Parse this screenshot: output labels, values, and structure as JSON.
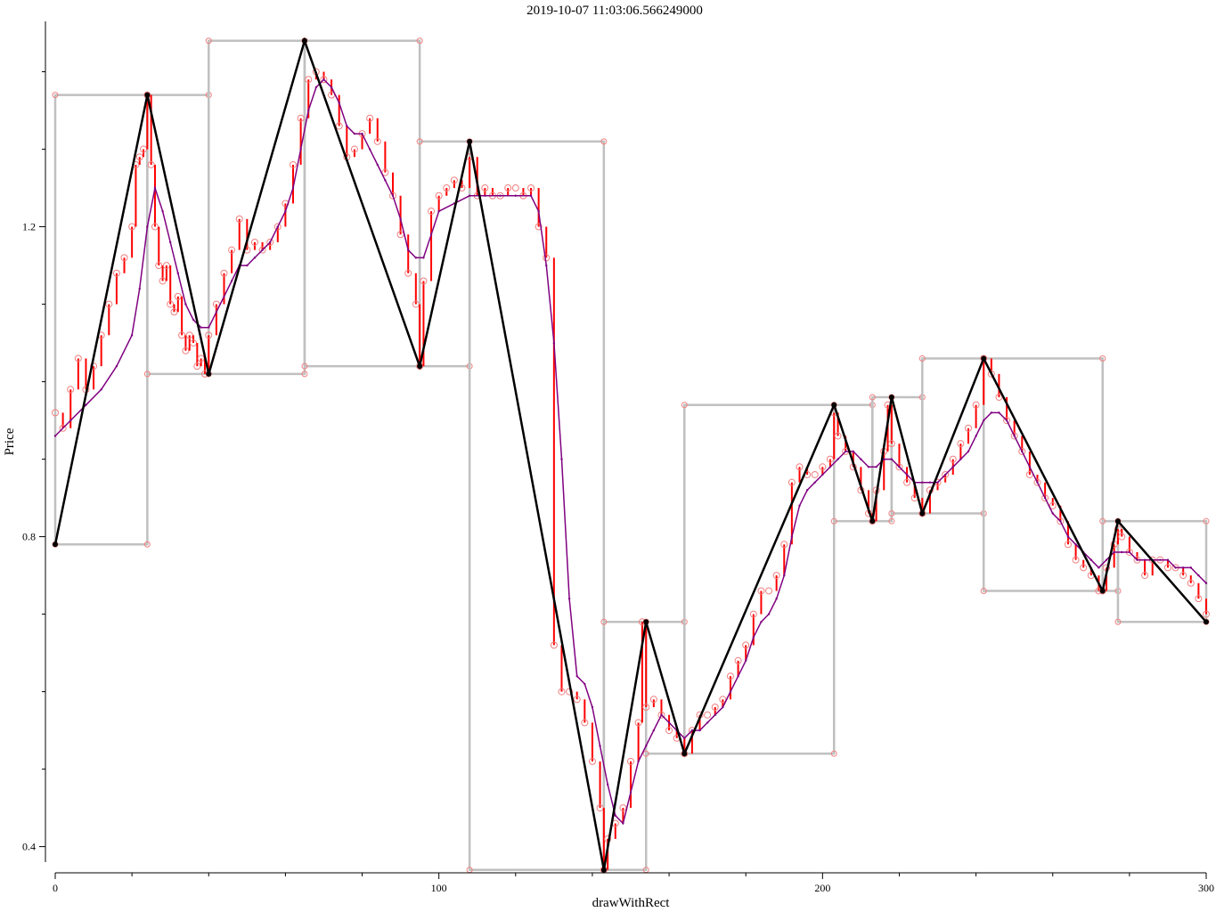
{
  "chart_data": {
    "type": "line",
    "title": "2019-10-07 11:03:06.566249000",
    "xlabel": "drawWithRect",
    "ylabel": "Price",
    "xlim": [
      0,
      300
    ],
    "ylim": [
      0.38,
      1.465
    ],
    "x_ticks": [
      0,
      100,
      200,
      300
    ],
    "y_ticks": [
      0.4,
      0.8,
      1.2
    ],
    "grid": false,
    "price_series": {
      "name": "",
      "color": "#ff0000",
      "points": [
        [
          0,
          0.96
        ],
        [
          2,
          0.94
        ],
        [
          4,
          0.99
        ],
        [
          6,
          1.03
        ],
        [
          8,
          0.99
        ],
        [
          10,
          1.02
        ],
        [
          12,
          1.06
        ],
        [
          14,
          1.1
        ],
        [
          16,
          1.14
        ],
        [
          18,
          1.16
        ],
        [
          20,
          1.2
        ],
        [
          21,
          1.28
        ],
        [
          22,
          1.29
        ],
        [
          23,
          1.3
        ],
        [
          24,
          1.37
        ],
        [
          25,
          1.28
        ],
        [
          26,
          1.2
        ],
        [
          27,
          1.15
        ],
        [
          28,
          1.13
        ],
        [
          29,
          1.15
        ],
        [
          30,
          1.1
        ],
        [
          31,
          1.09
        ],
        [
          32,
          1.11
        ],
        [
          33,
          1.06
        ],
        [
          34,
          1.04
        ],
        [
          35,
          1.06
        ],
        [
          36,
          1.05
        ],
        [
          37,
          1.02
        ],
        [
          38,
          1.03
        ],
        [
          39,
          1.01
        ],
        [
          40,
          1.06
        ],
        [
          42,
          1.1
        ],
        [
          44,
          1.14
        ],
        [
          46,
          1.17
        ],
        [
          48,
          1.21
        ],
        [
          50,
          1.17
        ],
        [
          52,
          1.18
        ],
        [
          54,
          1.17
        ],
        [
          56,
          1.18
        ],
        [
          58,
          1.2
        ],
        [
          60,
          1.23
        ],
        [
          62,
          1.28
        ],
        [
          64,
          1.34
        ],
        [
          66,
          1.39
        ],
        [
          68,
          1.4
        ],
        [
          70,
          1.39
        ],
        [
          72,
          1.37
        ],
        [
          74,
          1.33
        ],
        [
          76,
          1.29
        ],
        [
          78,
          1.3
        ],
        [
          80,
          1.32
        ],
        [
          82,
          1.34
        ],
        [
          84,
          1.31
        ],
        [
          86,
          1.27
        ],
        [
          88,
          1.24
        ],
        [
          90,
          1.19
        ],
        [
          92,
          1.14
        ],
        [
          94,
          1.1
        ],
        [
          95,
          1.02
        ],
        [
          96,
          1.13
        ],
        [
          98,
          1.22
        ],
        [
          100,
          1.24
        ],
        [
          102,
          1.25
        ],
        [
          104,
          1.26
        ],
        [
          106,
          1.25
        ],
        [
          108,
          1.29
        ],
        [
          110,
          1.24
        ],
        [
          112,
          1.25
        ],
        [
          114,
          1.24
        ],
        [
          116,
          1.24
        ],
        [
          118,
          1.25
        ],
        [
          120,
          1.25
        ],
        [
          122,
          1.24
        ],
        [
          124,
          1.25
        ],
        [
          126,
          1.2
        ],
        [
          128,
          1.16
        ],
        [
          130,
          0.66
        ],
        [
          132,
          0.6
        ],
        [
          134,
          0.6
        ],
        [
          136,
          0.59
        ],
        [
          138,
          0.56
        ],
        [
          140,
          0.51
        ],
        [
          142,
          0.45
        ],
        [
          143,
          0.37
        ],
        [
          144,
          0.41
        ],
        [
          146,
          0.43
        ],
        [
          148,
          0.45
        ],
        [
          150,
          0.51
        ],
        [
          152,
          0.56
        ],
        [
          153,
          0.69
        ],
        [
          154,
          0.58
        ],
        [
          156,
          0.59
        ],
        [
          158,
          0.57
        ],
        [
          160,
          0.55
        ],
        [
          162,
          0.54
        ],
        [
          164,
          0.52
        ],
        [
          166,
          0.55
        ],
        [
          168,
          0.57
        ],
        [
          170,
          0.57
        ],
        [
          172,
          0.58
        ],
        [
          174,
          0.59
        ],
        [
          176,
          0.62
        ],
        [
          178,
          0.64
        ],
        [
          180,
          0.66
        ],
        [
          182,
          0.7
        ],
        [
          184,
          0.73
        ],
        [
          186,
          0.73
        ],
        [
          188,
          0.75
        ],
        [
          190,
          0.79
        ],
        [
          192,
          0.87
        ],
        [
          194,
          0.89
        ],
        [
          196,
          0.88
        ],
        [
          198,
          0.88
        ],
        [
          200,
          0.89
        ],
        [
          202,
          0.9
        ],
        [
          203,
          0.96
        ],
        [
          204,
          0.93
        ],
        [
          206,
          0.91
        ],
        [
          208,
          0.89
        ],
        [
          210,
          0.86
        ],
        [
          212,
          0.83
        ],
        [
          213,
          0.82
        ],
        [
          214,
          0.86
        ],
        [
          216,
          0.91
        ],
        [
          217,
          0.97
        ],
        [
          218,
          0.92
        ],
        [
          220,
          0.89
        ],
        [
          222,
          0.87
        ],
        [
          224,
          0.85
        ],
        [
          226,
          0.83
        ],
        [
          228,
          0.86
        ],
        [
          230,
          0.87
        ],
        [
          232,
          0.88
        ],
        [
          234,
          0.9
        ],
        [
          236,
          0.92
        ],
        [
          238,
          0.94
        ],
        [
          240,
          0.97
        ],
        [
          242,
          1.03
        ],
        [
          244,
          1.01
        ],
        [
          246,
          0.98
        ],
        [
          248,
          0.95
        ],
        [
          250,
          0.93
        ],
        [
          252,
          0.91
        ],
        [
          254,
          0.88
        ],
        [
          256,
          0.87
        ],
        [
          258,
          0.85
        ],
        [
          260,
          0.84
        ],
        [
          262,
          0.82
        ],
        [
          264,
          0.79
        ],
        [
          266,
          0.77
        ],
        [
          268,
          0.76
        ],
        [
          270,
          0.75
        ],
        [
          272,
          0.73
        ],
        [
          273,
          0.73
        ],
        [
          274,
          0.76
        ],
        [
          276,
          0.79
        ],
        [
          277,
          0.81
        ],
        [
          278,
          0.8
        ],
        [
          280,
          0.78
        ],
        [
          282,
          0.77
        ],
        [
          284,
          0.75
        ],
        [
          286,
          0.77
        ],
        [
          288,
          0.77
        ],
        [
          290,
          0.76
        ],
        [
          292,
          0.76
        ],
        [
          294,
          0.75
        ],
        [
          296,
          0.74
        ],
        [
          298,
          0.72
        ],
        [
          300,
          0.7
        ]
      ]
    },
    "moving_average": {
      "name": "",
      "color": "#800080",
      "points": [
        [
          0,
          0.93
        ],
        [
          4,
          0.95
        ],
        [
          8,
          0.97
        ],
        [
          12,
          0.99
        ],
        [
          16,
          1.02
        ],
        [
          20,
          1.06
        ],
        [
          22,
          1.12
        ],
        [
          24,
          1.2
        ],
        [
          26,
          1.25
        ],
        [
          28,
          1.22
        ],
        [
          30,
          1.18
        ],
        [
          32,
          1.14
        ],
        [
          34,
          1.1
        ],
        [
          36,
          1.08
        ],
        [
          38,
          1.07
        ],
        [
          40,
          1.07
        ],
        [
          42,
          1.09
        ],
        [
          44,
          1.11
        ],
        [
          46,
          1.13
        ],
        [
          48,
          1.15
        ],
        [
          50,
          1.15
        ],
        [
          52,
          1.16
        ],
        [
          54,
          1.17
        ],
        [
          56,
          1.18
        ],
        [
          58,
          1.2
        ],
        [
          60,
          1.22
        ],
        [
          62,
          1.25
        ],
        [
          64,
          1.3
        ],
        [
          66,
          1.35
        ],
        [
          68,
          1.38
        ],
        [
          70,
          1.39
        ],
        [
          72,
          1.38
        ],
        [
          74,
          1.36
        ],
        [
          76,
          1.33
        ],
        [
          78,
          1.32
        ],
        [
          80,
          1.32
        ],
        [
          82,
          1.3
        ],
        [
          84,
          1.28
        ],
        [
          86,
          1.26
        ],
        [
          88,
          1.24
        ],
        [
          90,
          1.21
        ],
        [
          92,
          1.17
        ],
        [
          94,
          1.16
        ],
        [
          96,
          1.16
        ],
        [
          98,
          1.19
        ],
        [
          100,
          1.22
        ],
        [
          104,
          1.23
        ],
        [
          108,
          1.24
        ],
        [
          112,
          1.24
        ],
        [
          116,
          1.24
        ],
        [
          120,
          1.24
        ],
        [
          124,
          1.24
        ],
        [
          126,
          1.22
        ],
        [
          128,
          1.15
        ],
        [
          130,
          1.05
        ],
        [
          132,
          0.9
        ],
        [
          134,
          0.72
        ],
        [
          136,
          0.62
        ],
        [
          138,
          0.61
        ],
        [
          140,
          0.58
        ],
        [
          142,
          0.53
        ],
        [
          144,
          0.48
        ],
        [
          146,
          0.44
        ],
        [
          148,
          0.43
        ],
        [
          150,
          0.47
        ],
        [
          152,
          0.51
        ],
        [
          154,
          0.53
        ],
        [
          156,
          0.55
        ],
        [
          158,
          0.57
        ],
        [
          160,
          0.56
        ],
        [
          162,
          0.55
        ],
        [
          164,
          0.54
        ],
        [
          166,
          0.55
        ],
        [
          168,
          0.55
        ],
        [
          170,
          0.56
        ],
        [
          172,
          0.57
        ],
        [
          174,
          0.58
        ],
        [
          176,
          0.6
        ],
        [
          178,
          0.62
        ],
        [
          180,
          0.64
        ],
        [
          182,
          0.67
        ],
        [
          184,
          0.69
        ],
        [
          186,
          0.7
        ],
        [
          188,
          0.72
        ],
        [
          190,
          0.75
        ],
        [
          192,
          0.8
        ],
        [
          194,
          0.84
        ],
        [
          196,
          0.86
        ],
        [
          198,
          0.87
        ],
        [
          200,
          0.88
        ],
        [
          202,
          0.89
        ],
        [
          204,
          0.9
        ],
        [
          206,
          0.91
        ],
        [
          208,
          0.91
        ],
        [
          210,
          0.9
        ],
        [
          212,
          0.89
        ],
        [
          214,
          0.89
        ],
        [
          216,
          0.9
        ],
        [
          218,
          0.9
        ],
        [
          220,
          0.89
        ],
        [
          222,
          0.88
        ],
        [
          224,
          0.87
        ],
        [
          226,
          0.87
        ],
        [
          228,
          0.87
        ],
        [
          230,
          0.87
        ],
        [
          232,
          0.88
        ],
        [
          234,
          0.89
        ],
        [
          236,
          0.9
        ],
        [
          238,
          0.91
        ],
        [
          240,
          0.93
        ],
        [
          242,
          0.95
        ],
        [
          244,
          0.96
        ],
        [
          246,
          0.96
        ],
        [
          248,
          0.95
        ],
        [
          250,
          0.93
        ],
        [
          252,
          0.91
        ],
        [
          254,
          0.89
        ],
        [
          256,
          0.87
        ],
        [
          258,
          0.85
        ],
        [
          260,
          0.83
        ],
        [
          262,
          0.82
        ],
        [
          264,
          0.8
        ],
        [
          266,
          0.79
        ],
        [
          268,
          0.78
        ],
        [
          270,
          0.77
        ],
        [
          272,
          0.76
        ],
        [
          274,
          0.77
        ],
        [
          276,
          0.78
        ],
        [
          278,
          0.78
        ],
        [
          280,
          0.78
        ],
        [
          282,
          0.77
        ],
        [
          284,
          0.77
        ],
        [
          286,
          0.77
        ],
        [
          288,
          0.77
        ],
        [
          290,
          0.77
        ],
        [
          292,
          0.76
        ],
        [
          294,
          0.76
        ],
        [
          296,
          0.76
        ],
        [
          298,
          0.75
        ],
        [
          300,
          0.74
        ]
      ]
    },
    "zigzag": {
      "name": "",
      "color": "#000000",
      "points": [
        [
          0,
          0.79
        ],
        [
          24,
          1.37
        ],
        [
          40,
          1.01
        ],
        [
          65,
          1.44
        ],
        [
          95,
          1.02
        ],
        [
          108,
          1.31
        ],
        [
          143,
          0.37
        ],
        [
          154,
          0.69
        ],
        [
          164,
          0.52
        ],
        [
          203,
          0.97
        ],
        [
          213,
          0.82
        ],
        [
          218,
          0.98
        ],
        [
          226,
          0.83
        ],
        [
          242,
          1.03
        ],
        [
          273,
          0.73
        ],
        [
          277,
          0.82
        ],
        [
          300,
          0.69
        ]
      ]
    },
    "rects": {
      "color": "#c0c0c0",
      "items": [
        [
          0,
          24,
          0.79,
          1.37
        ],
        [
          24,
          40,
          1.01,
          1.37
        ],
        [
          40,
          65,
          1.01,
          1.44
        ],
        [
          65,
          95,
          1.02,
          1.44
        ],
        [
          95,
          108,
          1.02,
          1.31
        ],
        [
          108,
          143,
          0.37,
          1.31
        ],
        [
          143,
          154,
          0.37,
          0.69
        ],
        [
          154,
          164,
          0.52,
          0.69
        ],
        [
          164,
          203,
          0.52,
          0.97
        ],
        [
          203,
          213,
          0.82,
          0.97
        ],
        [
          213,
          218,
          0.82,
          0.98
        ],
        [
          218,
          226,
          0.83,
          0.98
        ],
        [
          226,
          242,
          0.83,
          1.03
        ],
        [
          242,
          273,
          0.73,
          1.03
        ],
        [
          273,
          277,
          0.73,
          0.82
        ],
        [
          277,
          300,
          0.69,
          0.82
        ]
      ]
    }
  }
}
